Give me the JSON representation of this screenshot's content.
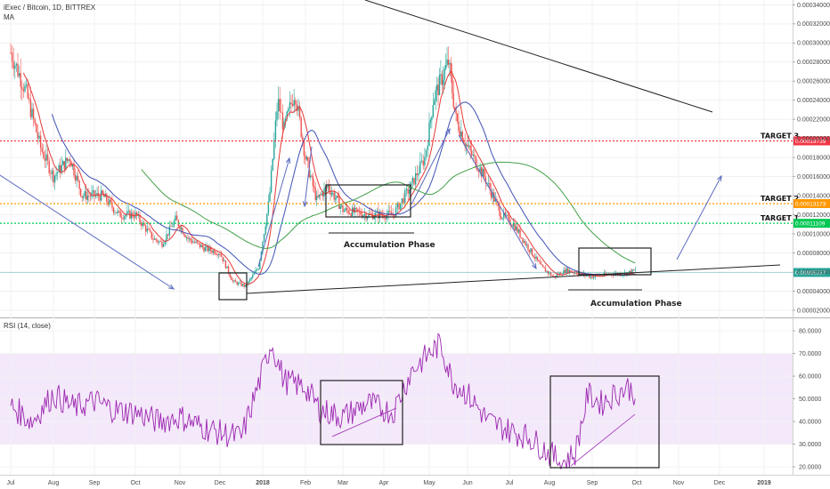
{
  "header": {
    "symbol_line": "iExec / Bitcoin, 1D, BITTREX",
    "ma_label": "MA",
    "rsi_label": "RSI (14, close)"
  },
  "chart_data": [
    {
      "type": "candlestick",
      "title": "iExec / Bitcoin, 1D, BITTREX",
      "x": [
        "Jul",
        "Aug",
        "Sep",
        "Oct",
        "Nov",
        "Dec",
        "2018",
        "Feb",
        "Mar",
        "Apr",
        "May",
        "Jun",
        "Jul",
        "Aug",
        "Sep",
        "Oct",
        "Nov",
        "Dec",
        "2019"
      ],
      "y_ticks": [
        "0.00034000",
        "0.00032000",
        "0.00030000",
        "0.00028000",
        "0.00026000",
        "0.00024000",
        "0.00022000",
        "0.00020000",
        "0.00018000",
        "0.00016000",
        "0.00014000",
        "0.00012000",
        "0.00010000",
        "0.00008000",
        "0.00006000",
        "0.00004000",
        "0.00002000"
      ],
      "ylim": [
        1.25e-05,
        0.000345
      ],
      "price_series_approx": [
        [
          "Jul",
          0.00029
        ],
        [
          "Aug",
          0.00016
        ],
        [
          "Sep",
          0.00014
        ],
        [
          "Oct",
          0.00012
        ],
        [
          "Nov",
          0.0001
        ],
        [
          "Dec",
          8.5e-05
        ],
        [
          "Dec",
          4.5e-05
        ],
        [
          "2018",
          9e-05
        ],
        [
          "2018",
          0.00027
        ],
        [
          "Feb",
          0.00017
        ],
        [
          "Mar",
          0.00013
        ],
        [
          "Apr",
          0.00012
        ],
        [
          "May",
          0.00019
        ],
        [
          "May",
          0.00028
        ],
        [
          "Jun",
          0.0002
        ],
        [
          "Jul",
          0.00012
        ],
        [
          "Aug",
          6e-05
        ],
        [
          "Sep",
          5.8e-05
        ],
        [
          "Oct",
          6.1e-05
        ]
      ],
      "moving_averages": [
        {
          "name": "",
          "color": "#e53935"
        },
        {
          "name": "",
          "color": "#3f51b5"
        },
        {
          "name": "",
          "color": "#43a047"
        }
      ],
      "levels": [
        {
          "label": "TARGET 3",
          "value": "0.00019739",
          "y": 0.00019739,
          "color": "#f23645"
        },
        {
          "label": "TARGET 2",
          "value": "0.00013173",
          "y": 0.00013173,
          "color": "#ff9800"
        },
        {
          "label": "TARGET 1",
          "value": "0.00011109",
          "y": 0.00011109,
          "color": "#00c853"
        }
      ],
      "current_price": {
        "value": "0.00005957",
        "y": 5.957e-05,
        "color": "#26a69a"
      },
      "annotations": [
        "Accumulation Phase",
        "Accumulation Phase"
      ]
    },
    {
      "type": "line",
      "title": "RSI (14, close)",
      "y_ticks": [
        "80.0000",
        "70.0000",
        "60.0000",
        "50.0000",
        "40.0000",
        "30.0000",
        "20.0000"
      ],
      "ylim": [
        16.5,
        85.5
      ],
      "band": [
        30,
        70
      ],
      "series": [
        {
          "name": "",
          "color": "#9c27b0",
          "values_approx": [
            [
              "Jul",
              47
            ],
            [
              "Aug",
              52
            ],
            [
              "Sep",
              48
            ],
            [
              "Oct",
              45
            ],
            [
              "Nov",
              42
            ],
            [
              "Dec",
              35
            ],
            [
              "2018",
              70
            ],
            [
              "Feb",
              55
            ],
            [
              "Mar",
              42
            ],
            [
              "Apr",
              48
            ],
            [
              "May",
              75
            ],
            [
              "Jun",
              52
            ],
            [
              "Jul",
              38
            ],
            [
              "Aug",
              28
            ],
            [
              "Aug",
              20
            ],
            [
              "Sep",
              55
            ],
            [
              "Oct",
              52
            ]
          ]
        }
      ]
    }
  ]
}
